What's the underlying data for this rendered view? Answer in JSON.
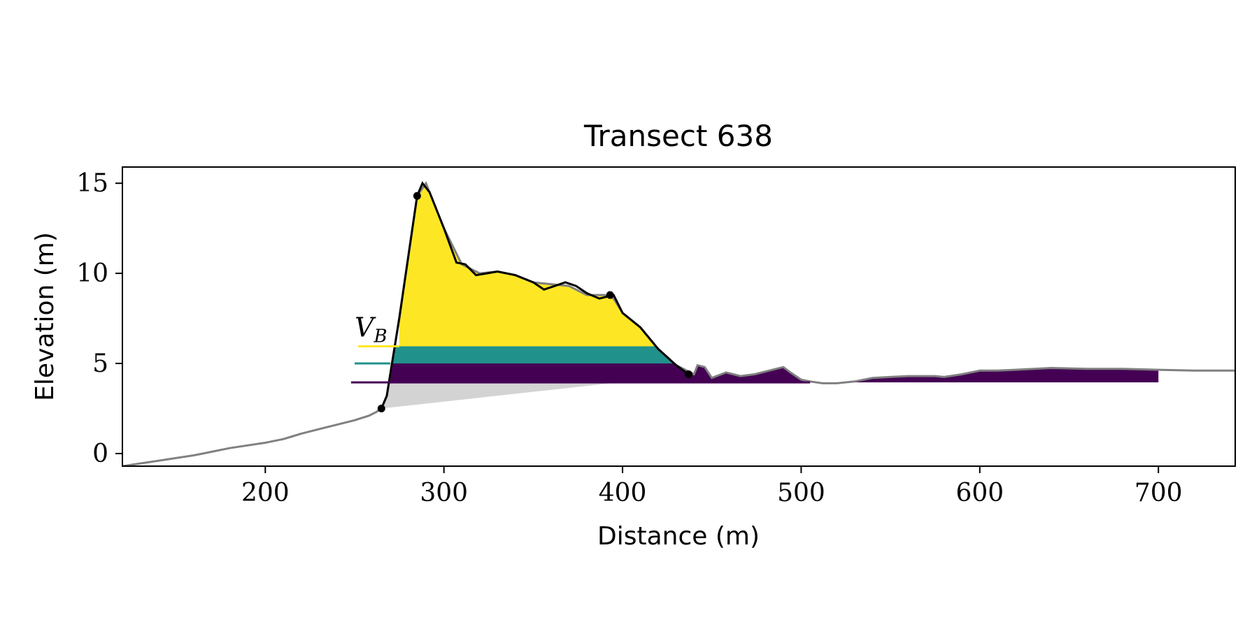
{
  "chart_data": {
    "type": "area",
    "title": "Transect 638",
    "xlabel": "Distance (m)",
    "ylabel": "Elevation (m)",
    "xlim": [
      120,
      743
    ],
    "ylim": [
      -0.7,
      15.9
    ],
    "xticks": [
      200,
      300,
      400,
      500,
      600,
      700
    ],
    "yticks": [
      0,
      5,
      10,
      15
    ],
    "grid": false,
    "annotation": "V_B",
    "annotation_position": [
      250,
      6.5
    ],
    "colors": {
      "profile": "#808080",
      "dune": "#000000",
      "base_fill": "#d3d3d3",
      "level_high": "#fde725",
      "level_mid": "#21918c",
      "level_low": "#440154",
      "markers": "#000000"
    },
    "profile": {
      "x": [
        120,
        130,
        140,
        150,
        160,
        165,
        170,
        180,
        190,
        200,
        210,
        215,
        220,
        230,
        240,
        250,
        258,
        262,
        265,
        268,
        275,
        285,
        290,
        300,
        310,
        320,
        330,
        340,
        350,
        360,
        370,
        380,
        390,
        395,
        400,
        410,
        420,
        430,
        436,
        440,
        442,
        446,
        450,
        458,
        466,
        474,
        482,
        490,
        494,
        500,
        505,
        512,
        520,
        530,
        540,
        560,
        575,
        580,
        590,
        600,
        610,
        620,
        640,
        660,
        680,
        700,
        720,
        743
      ],
      "y": [
        -0.7,
        -0.55,
        -0.4,
        -0.25,
        -0.1,
        0.0,
        0.1,
        0.3,
        0.45,
        0.6,
        0.8,
        0.95,
        1.1,
        1.35,
        1.6,
        1.85,
        2.1,
        2.3,
        2.5,
        3.2,
        7.5,
        14.3,
        15.0,
        12.5,
        10.5,
        10.0,
        10.1,
        9.9,
        9.5,
        9.4,
        9.3,
        8.8,
        8.8,
        8.6,
        7.8,
        7.0,
        5.8,
        4.9,
        4.6,
        4.4,
        4.9,
        4.8,
        4.2,
        4.5,
        4.3,
        4.4,
        4.6,
        4.8,
        4.5,
        4.1,
        4.0,
        3.9,
        3.9,
        4.0,
        4.2,
        4.3,
        4.3,
        4.25,
        4.4,
        4.6,
        4.6,
        4.65,
        4.75,
        4.7,
        4.7,
        4.65,
        4.6,
        4.6
      ]
    },
    "dune_profile": {
      "x": [
        265,
        268,
        275,
        285,
        288,
        292,
        300,
        307,
        312,
        318,
        324,
        330,
        340,
        350,
        356,
        362,
        368,
        374,
        380,
        387,
        395,
        400,
        410,
        420,
        430,
        437
      ],
      "y": [
        2.5,
        3.2,
        7.5,
        14.3,
        15.0,
        14.5,
        12.5,
        10.6,
        10.5,
        9.9,
        10.0,
        10.1,
        9.9,
        9.5,
        9.1,
        9.3,
        9.5,
        9.3,
        8.9,
        8.6,
        8.8,
        7.8,
        7.0,
        5.8,
        4.9,
        4.4
      ]
    },
    "markers": {
      "x": [
        265,
        285,
        393,
        437
      ],
      "y": [
        2.5,
        14.3,
        8.8,
        4.4
      ]
    },
    "base_polygon": {
      "x": [
        265,
        270,
        398
      ],
      "y": [
        2.5,
        3.95,
        3.95
      ]
    },
    "levels": [
      {
        "z_bottom": 5.95,
        "z_top": 16,
        "x_start": 275,
        "line_x_start": 252,
        "color_key": "level_high"
      },
      {
        "z_bottom": 5.0,
        "z_top": 5.95,
        "x_start": 270,
        "line_x_start": 250,
        "color_key": "level_mid"
      },
      {
        "z_bottom": 3.95,
        "z_top": 5.0,
        "x_start": 268,
        "line_x_start": 248,
        "color_key": "level_low"
      }
    ]
  }
}
